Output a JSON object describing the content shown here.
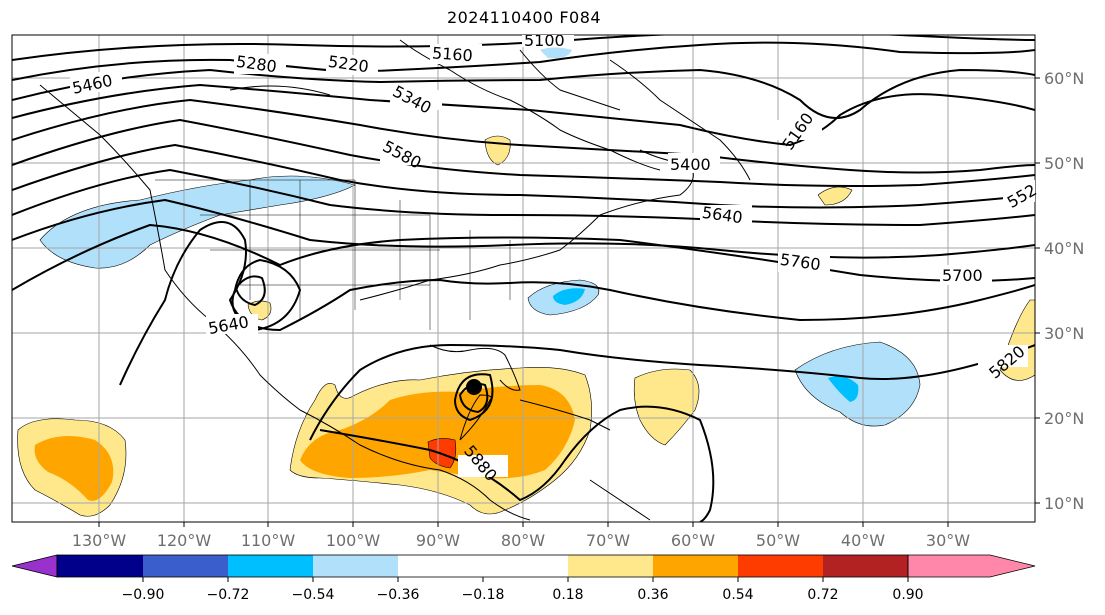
{
  "title": "2024110400 F084",
  "lon_labels": [
    "130°W",
    "120°W",
    "110°W",
    "100°W",
    "90°W",
    "80°W",
    "70°W",
    "60°W",
    "50°W",
    "40°W",
    "30°W"
  ],
  "lat_labels": [
    "60°N",
    "50°N",
    "40°N",
    "30°N",
    "20°N",
    "10°N"
  ],
  "contour_labels": [
    "5460",
    "5280",
    "5220",
    "5160",
    "5100",
    "5340",
    "5580",
    "5400",
    "5160",
    "5640",
    "5760",
    "5700",
    "552",
    "5820",
    "5640",
    "5880"
  ],
  "colorbar": {
    "ticks": [
      "−0.90",
      "−0.72",
      "−0.54",
      "−0.36",
      "−0.18",
      "0.18",
      "0.36",
      "0.54",
      "0.72",
      "0.90"
    ],
    "colors": [
      "#9932cc",
      "#00008b",
      "#3a5fcd",
      "#00bfff",
      "#b0e0fa",
      "#ffffff",
      "#ffe88c",
      "#ffa500",
      "#ff3c00",
      "#b22222",
      "#ff88aa"
    ]
  },
  "legend_marker": "storm-center-marker"
}
